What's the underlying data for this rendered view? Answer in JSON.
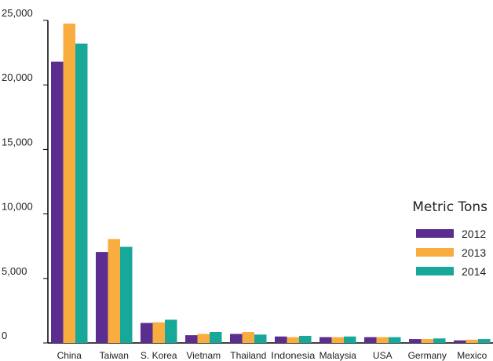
{
  "chart_data": {
    "type": "bar",
    "categories": [
      "China",
      "Taiwan",
      "S. Korea",
      "Vietnam",
      "Thailand",
      "Indonesia",
      "Malaysia",
      "USA",
      "Germany",
      "Mexico"
    ],
    "series": [
      {
        "name": "2012",
        "color": "#5b2d8e",
        "values": [
          21800,
          7050,
          1550,
          600,
          700,
          500,
          450,
          450,
          300,
          200
        ]
      },
      {
        "name": "2013",
        "color": "#f9ad3f",
        "values": [
          24750,
          8050,
          1600,
          700,
          850,
          450,
          450,
          450,
          300,
          250
        ]
      },
      {
        "name": "2014",
        "color": "#17a89a",
        "values": [
          23200,
          7450,
          1800,
          850,
          650,
          550,
          500,
          450,
          350,
          300
        ]
      }
    ],
    "yticks": [
      "0",
      "5,000",
      "10,000",
      "15,000",
      "20,000",
      "25,000"
    ],
    "ylim": [
      0,
      25000
    ],
    "legend": {
      "title": "Metric Tons",
      "position": "right"
    },
    "grid": false
  }
}
